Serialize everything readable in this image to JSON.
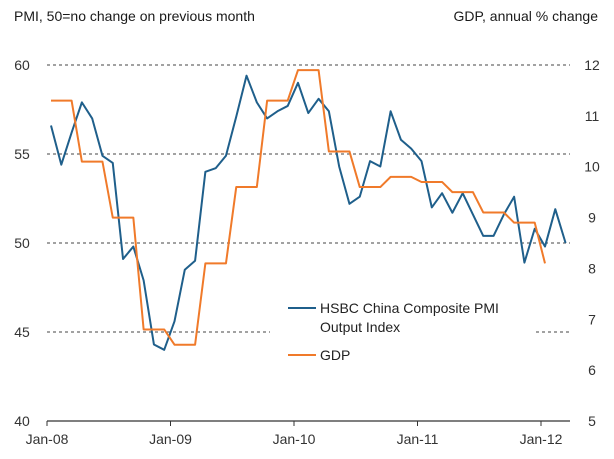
{
  "chart_data": {
    "type": "line",
    "left_axis_title": "PMI, 50=no change on previous month",
    "right_axis_title": "GDP, annual % change",
    "x_tick_labels": [
      "Jan-08",
      "Jan-09",
      "Jan-10",
      "Jan-11",
      "Jan-12"
    ],
    "left_ylim": [
      40,
      60
    ],
    "left_ticks": [
      "40",
      "45",
      "50",
      "55",
      "60"
    ],
    "right_ylim": [
      5,
      12
    ],
    "right_ticks": [
      "5",
      "6",
      "7",
      "8",
      "9",
      "10",
      "11",
      "12"
    ],
    "grid": "dashed horizontal at left-axis ticks",
    "legend_position": "center-right",
    "colors": {
      "pmi": "#1f5f8b",
      "gdp": "#f07a2a",
      "grid": "#444444",
      "axis": "#333333"
    },
    "series": [
      {
        "name": "HSBC China Composite PMI Output Index",
        "legend_lines": [
          "HSBC China Composite PMI",
          "Output Index"
        ],
        "axis": "left",
        "frequency": "monthly",
        "start": "Jan-08",
        "values": [
          56.6,
          54.4,
          56.2,
          57.9,
          57.0,
          54.9,
          54.5,
          49.1,
          49.8,
          47.9,
          44.3,
          44.0,
          45.6,
          48.5,
          49.0,
          54.0,
          54.2,
          54.9,
          57.1,
          59.4,
          57.9,
          57.0,
          57.4,
          57.7,
          59.0,
          57.3,
          58.1,
          57.4,
          54.3,
          52.2,
          52.6,
          54.6,
          54.3,
          57.4,
          55.8,
          55.3,
          54.6,
          52.0,
          52.8,
          51.7,
          52.8,
          51.6,
          50.4,
          50.4,
          51.6,
          52.6,
          48.9,
          50.8,
          49.8,
          51.9,
          50.0
        ]
      },
      {
        "name": "GDP",
        "legend_lines": [
          "GDP"
        ],
        "axis": "right",
        "frequency": "quarterly",
        "start": "Q1-08",
        "values": [
          11.3,
          10.1,
          9.0,
          6.8,
          6.5,
          8.1,
          9.6,
          11.3,
          11.9,
          10.3,
          9.6,
          9.8,
          9.7,
          9.5,
          9.1,
          8.9,
          8.1
        ]
      }
    ]
  }
}
